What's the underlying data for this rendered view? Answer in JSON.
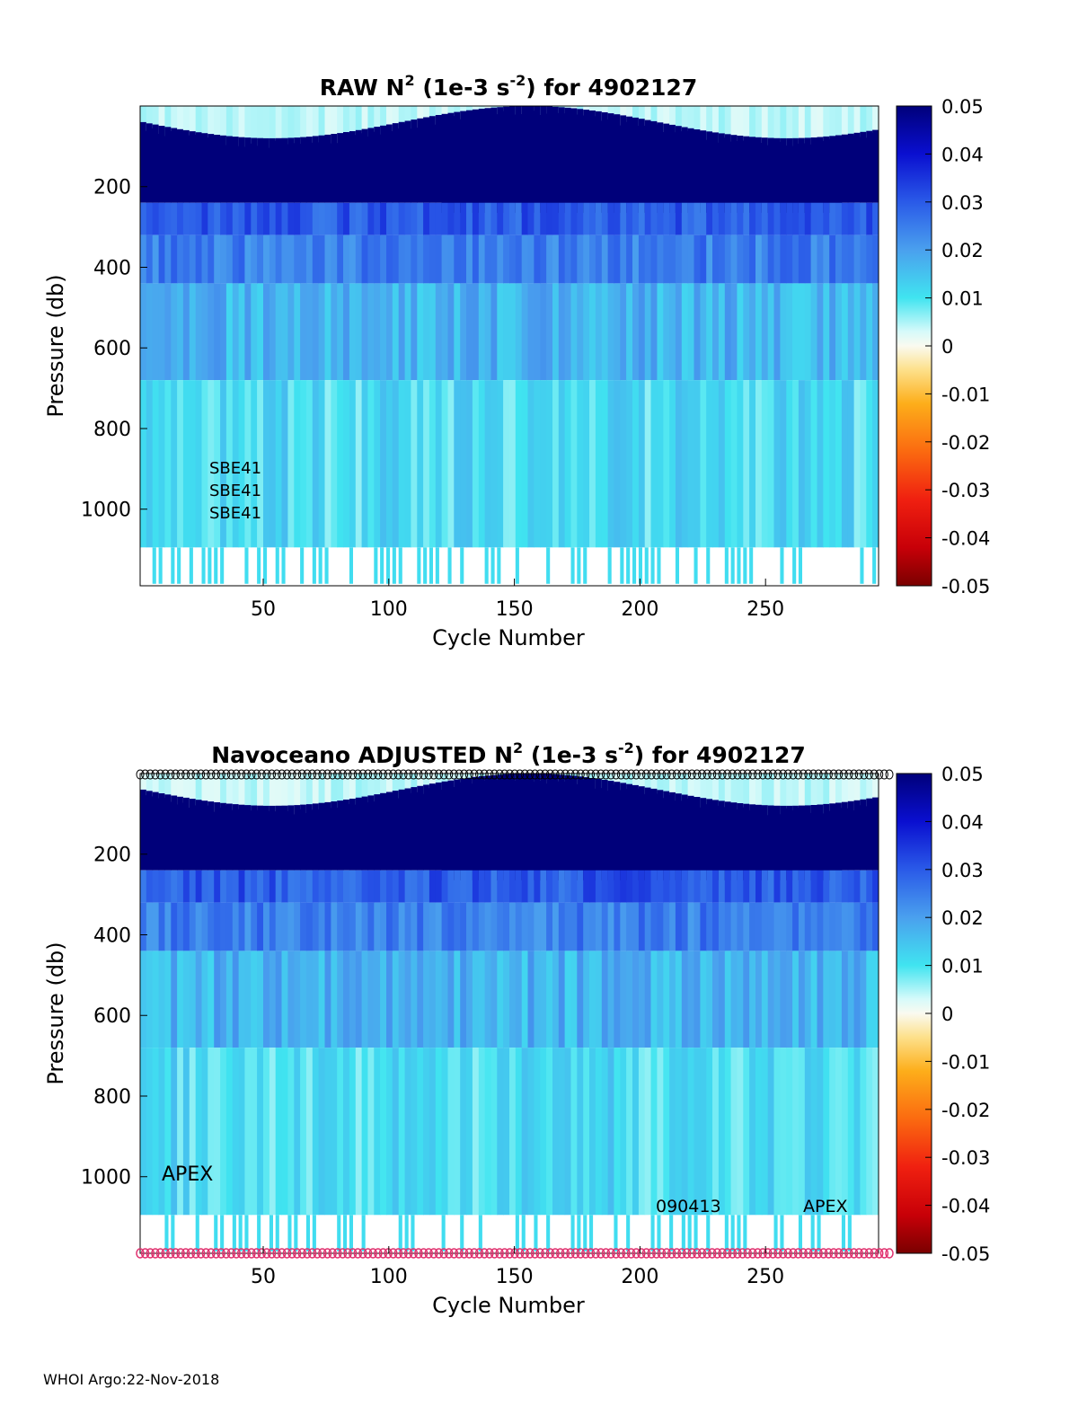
{
  "footer": "WHOI Argo:22-Nov-2018",
  "chart_data": [
    {
      "type": "heatmap",
      "title_main": "RAW N",
      "title_sup": "2",
      "title_mid": " (1e-3 s",
      "title_sup2": "-2",
      "title_end": ") for 4902127",
      "xlabel": "Cycle Number",
      "ylabel": "Pressure (db)",
      "xlim": [
        1,
        295
      ],
      "ylim": [
        1190,
        0
      ],
      "xticks": [
        "50",
        "100",
        "150",
        "200",
        "250"
      ],
      "xtick_values": [
        50,
        100,
        150,
        200,
        250
      ],
      "yticks": [
        "200",
        "400",
        "600",
        "800",
        "1000"
      ],
      "ytick_values": [
        200,
        400,
        600,
        800,
        1000
      ],
      "colorbar_ticks": [
        "0.05",
        "0.04",
        "0.03",
        "0.02",
        "0.01",
        "0",
        "-0.01",
        "-0.02",
        "-0.03",
        "-0.04",
        "-0.05"
      ],
      "colorbar_range": [
        -0.05,
        0.05
      ],
      "annotations": [
        "SBE41",
        "SBE41",
        "SBE41"
      ],
      "bands": [
        {
          "p_top": 0,
          "p_bottom": 60,
          "level": 0.0
        },
        {
          "p_top": 60,
          "p_bottom": 240,
          "level": 0.05
        },
        {
          "p_top": 240,
          "p_bottom": 320,
          "level": 0.03
        },
        {
          "p_top": 320,
          "p_bottom": 440,
          "level": 0.025
        },
        {
          "p_top": 440,
          "p_bottom": 680,
          "level": 0.017
        },
        {
          "p_top": 680,
          "p_bottom": 1095,
          "level": 0.011
        }
      ],
      "markers": false
    },
    {
      "type": "heatmap",
      "title_main": "Navoceano  ADJUSTED N",
      "title_sup": "2",
      "title_mid": " (1e-3 s",
      "title_sup2": "-2",
      "title_end": ") for 4902127",
      "xlabel": "Cycle Number",
      "ylabel": "Pressure (db)",
      "xlim": [
        1,
        295
      ],
      "ylim": [
        1190,
        0
      ],
      "xticks": [
        "50",
        "100",
        "150",
        "200",
        "250"
      ],
      "xtick_values": [
        50,
        100,
        150,
        200,
        250
      ],
      "yticks": [
        "200",
        "400",
        "600",
        "800",
        "1000"
      ],
      "ytick_values": [
        200,
        400,
        600,
        800,
        1000
      ],
      "colorbar_ticks": [
        "0.05",
        "0.04",
        "0.03",
        "0.02",
        "0.01",
        "0",
        "-0.01",
        "-0.02",
        "-0.03",
        "-0.04",
        "-0.05"
      ],
      "colorbar_range": [
        -0.05,
        0.05
      ],
      "annotations": [
        "APEX",
        "090413",
        "APEX"
      ],
      "bands": [
        {
          "p_top": 0,
          "p_bottom": 60,
          "level": 0.0
        },
        {
          "p_top": 60,
          "p_bottom": 240,
          "level": 0.05
        },
        {
          "p_top": 240,
          "p_bottom": 320,
          "level": 0.03
        },
        {
          "p_top": 320,
          "p_bottom": 440,
          "level": 0.025
        },
        {
          "p_top": 440,
          "p_bottom": 680,
          "level": 0.017
        },
        {
          "p_top": 680,
          "p_bottom": 1095,
          "level": 0.011
        }
      ],
      "markers": true,
      "marker_top_color": "#000000",
      "marker_bottom_color": "#e0306e"
    }
  ]
}
